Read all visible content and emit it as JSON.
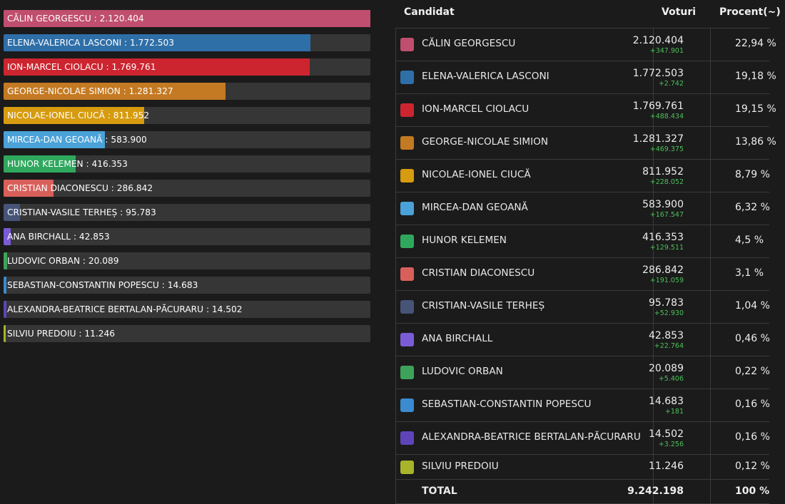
{
  "chart_data": {
    "type": "bar",
    "orientation": "horizontal",
    "xlim": [
      0,
      2120404
    ],
    "categories": [
      "CĂLIN GEORGESCU",
      "ELENA-VALERICA LASCONI",
      "ION-MARCEL CIOLACU",
      "GEORGE-NICOLAE SIMION",
      "NICOLAE-IONEL CIUCĂ",
      "MIRCEA-DAN GEOANĂ",
      "HUNOR KELEMEN",
      "CRISTIAN DIACONESCU",
      "CRISTIAN-VASILE TERHEȘ",
      "ANA BIRCHALL",
      "LUDOVIC ORBAN",
      "SEBASTIAN-CONSTANTIN POPESCU",
      "ALEXANDRA-BEATRICE BERTALAN-PĂCURARU",
      "SILVIU PREDOIU"
    ],
    "values": [
      2120404,
      1772503,
      1769761,
      1281327,
      811952,
      583900,
      416353,
      286842,
      95783,
      42853,
      20089,
      14683,
      14502,
      11246
    ],
    "labels": [
      "CĂLIN GEORGESCU : 2.120.404",
      "ELENA-VALERICA LASCONI : 1.772.503",
      "ION-MARCEL CIOLACU : 1.769.761",
      "GEORGE-NICOLAE SIMION : 1.281.327",
      "NICOLAE-IONEL CIUCĂ : 811.952",
      "MIRCEA-DAN GEOANĂ : 583.900",
      "HUNOR KELEMEN : 416.353",
      "CRISTIAN DIACONESCU : 286.842",
      "CRISTIAN-VASILE TERHEȘ : 95.783",
      "ANA BIRCHALL : 42.853",
      "LUDOVIC ORBAN : 20.089",
      "SEBASTIAN-CONSTANTIN POPESCU : 14.683",
      "ALEXANDRA-BEATRICE BERTALAN-PĂCURARU : 14.502",
      "SILVIU PREDOIU : 11.246"
    ],
    "colors": [
      "#c04e6e",
      "#2f6fa8",
      "#cc2530",
      "#c47a22",
      "#d69b0f",
      "#4aa2d8",
      "#2fa85e",
      "#d9605a",
      "#465478",
      "#7a5cd6",
      "#3ea35a",
      "#3a8bd0",
      "#5e44b8",
      "#a8b42a"
    ],
    "title": "",
    "xlabel": "",
    "ylabel": "",
    "grid": false
  },
  "table": {
    "headers": {
      "candidate": "Candidat",
      "votes": "Voturi",
      "percent": "Procent(~)"
    },
    "rows": [
      {
        "name": "CĂLIN GEORGESCU",
        "votes": "2.120.404",
        "delta": "+347.901",
        "percent": "22,94 %",
        "color": "#c04e6e"
      },
      {
        "name": "ELENA-VALERICA LASCONI",
        "votes": "1.772.503",
        "delta": "+2.742",
        "percent": "19,18 %",
        "color": "#2f6fa8"
      },
      {
        "name": "ION-MARCEL CIOLACU",
        "votes": "1.769.761",
        "delta": "+488.434",
        "percent": "19,15 %",
        "color": "#cc2530"
      },
      {
        "name": "GEORGE-NICOLAE SIMION",
        "votes": "1.281.327",
        "delta": "+469.375",
        "percent": "13,86 %",
        "color": "#c47a22"
      },
      {
        "name": "NICOLAE-IONEL CIUCĂ",
        "votes": "811.952",
        "delta": "+228.052",
        "percent": "8,79 %",
        "color": "#d69b0f"
      },
      {
        "name": "MIRCEA-DAN GEOANĂ",
        "votes": "583.900",
        "delta": "+167.547",
        "percent": "6,32 %",
        "color": "#4aa2d8"
      },
      {
        "name": "HUNOR KELEMEN",
        "votes": "416.353",
        "delta": "+129.511",
        "percent": "4,5 %",
        "color": "#2fa85e"
      },
      {
        "name": "CRISTIAN DIACONESCU",
        "votes": "286.842",
        "delta": "+191.059",
        "percent": "3,1 %",
        "color": "#d9605a"
      },
      {
        "name": "CRISTIAN-VASILE TERHEȘ",
        "votes": "95.783",
        "delta": "+52.930",
        "percent": "1,04 %",
        "color": "#465478"
      },
      {
        "name": "ANA BIRCHALL",
        "votes": "42.853",
        "delta": "+22.764",
        "percent": "0,46 %",
        "color": "#7a5cd6"
      },
      {
        "name": "LUDOVIC ORBAN",
        "votes": "20.089",
        "delta": "+5.406",
        "percent": "0,22 %",
        "color": "#3ea35a"
      },
      {
        "name": "SEBASTIAN-CONSTANTIN POPESCU",
        "votes": "14.683",
        "delta": "+181",
        "percent": "0,16 %",
        "color": "#3a8bd0"
      },
      {
        "name": "ALEXANDRA-BEATRICE BERTALAN-PĂCURARU",
        "votes": "14.502",
        "delta": "+3.256",
        "percent": "0,16 %",
        "color": "#5e44b8"
      },
      {
        "name": "SILVIU PREDOIU",
        "votes": "11.246",
        "delta": "",
        "percent": "0,12 %",
        "color": "#a8b42a"
      }
    ],
    "total": {
      "label": "TOTAL",
      "votes": "9.242.198",
      "percent": "100 %"
    }
  }
}
